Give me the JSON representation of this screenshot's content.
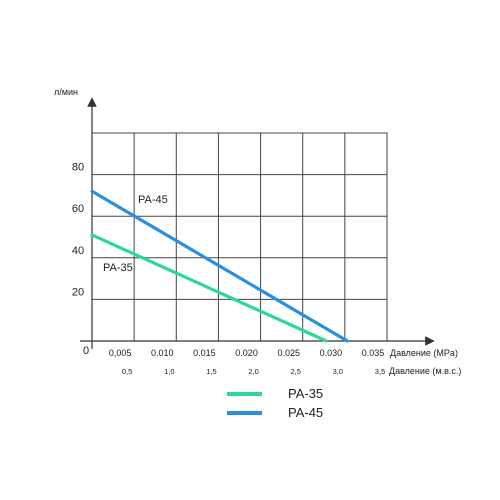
{
  "chart_data": {
    "type": "line",
    "ylabel": "л/мин",
    "xlabel": "Давление (MPa)",
    "x2label": "Давление (м.в.с.)",
    "xlim": [
      0,
      0.035
    ],
    "ylim": [
      0,
      100
    ],
    "x_ticks": [
      "0,005",
      "0.010",
      "0.015",
      "0.020",
      "0.025",
      "0.030",
      "0.035"
    ],
    "x_tick_values": [
      0.005,
      0.01,
      0.015,
      0.02,
      0.025,
      0.03,
      0.035
    ],
    "x2_ticks": [
      "0,5",
      "1,0",
      "1,5",
      "2,0",
      "2,5",
      "3,0",
      "3,5"
    ],
    "y_ticks": [
      "20",
      "40",
      "60",
      "80"
    ],
    "y_tick_values": [
      20,
      40,
      60,
      80
    ],
    "origin_label": "0",
    "grid": true,
    "legend_position": "bottom",
    "series": [
      {
        "name": "PA-35",
        "color": "#2ed69a",
        "x": [
          0,
          0.0278
        ],
        "y": [
          51,
          0
        ],
        "inline_label": "PA-35"
      },
      {
        "name": "PA-45",
        "color": "#2b8fe0",
        "x": [
          0,
          0.0303
        ],
        "y": [
          72,
          0
        ],
        "inline_label": "PA-45"
      }
    ]
  }
}
